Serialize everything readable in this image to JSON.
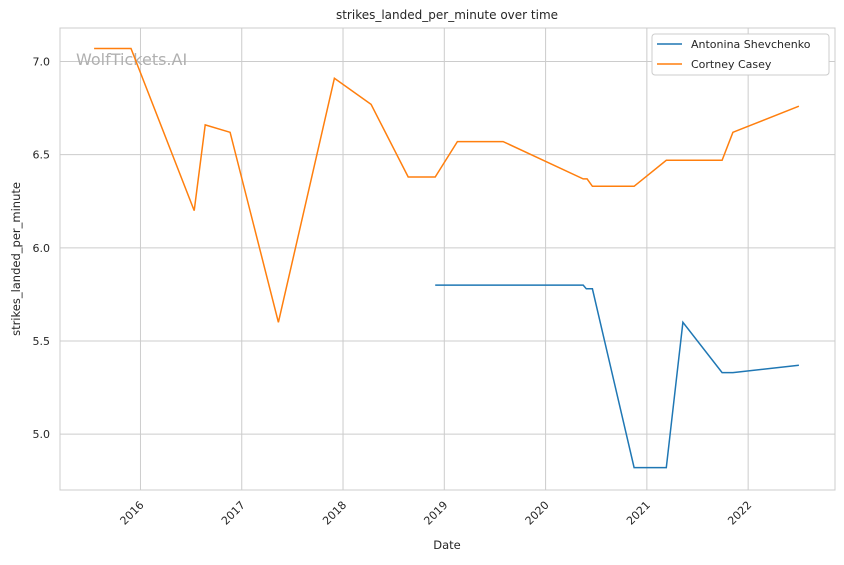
{
  "chart_data": {
    "type": "line",
    "title": "strikes_landed_per_minute over time",
    "xlabel": "Date",
    "ylabel": "strikes_landed_per_minute",
    "watermark": "WolfTickets.AI",
    "xlim": [
      "2015-03-17",
      "2022-11-10"
    ],
    "ylim": [
      4.7,
      7.18
    ],
    "x_ticks": [
      "2016",
      "2017",
      "2018",
      "2019",
      "2020",
      "2021",
      "2022"
    ],
    "y_ticks": [
      "5.0",
      "5.5",
      "6.0",
      "6.5",
      "7.0"
    ],
    "grid": true,
    "legend_position": "top-right",
    "series": [
      {
        "name": "Antonina Shevchenko",
        "color": "#1f77b4",
        "x": [
          "2018-11-29",
          "2020-05-16",
          "2020-05-27",
          "2020-06-18",
          "2020-11-16",
          "2021-03-12",
          "2021-05-11",
          "2021-09-29",
          "2021-11-07",
          "2022-07-03"
        ],
        "y": [
          5.8,
          5.8,
          5.78,
          5.78,
          4.82,
          4.82,
          5.6,
          5.33,
          5.33,
          5.37
        ]
      },
      {
        "name": "Cortney Casey",
        "color": "#ff7f0e",
        "x": [
          "2015-07-18",
          "2015-11-28",
          "2016-07-13",
          "2016-08-22",
          "2016-11-20",
          "2017-05-13",
          "2017-12-01",
          "2018-04-12",
          "2018-08-24",
          "2018-11-29",
          "2019-02-17",
          "2019-08-01",
          "2020-05-16",
          "2020-05-30",
          "2020-06-18",
          "2020-11-16",
          "2021-03-12",
          "2021-09-29",
          "2021-11-07",
          "2022-07-03"
        ],
        "y": [
          7.07,
          7.07,
          6.2,
          6.66,
          6.62,
          5.6,
          6.91,
          6.77,
          6.38,
          6.38,
          6.57,
          6.57,
          6.37,
          6.37,
          6.33,
          6.33,
          6.47,
          6.47,
          6.62,
          6.76
        ]
      }
    ]
  }
}
